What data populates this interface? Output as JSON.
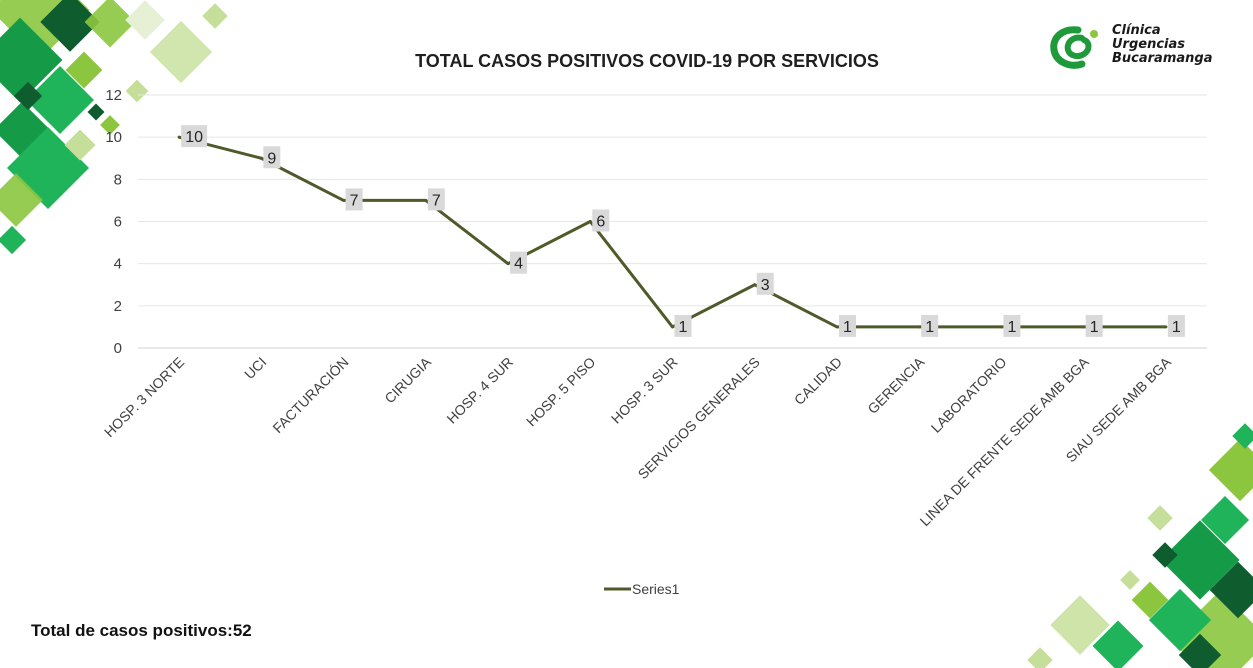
{
  "chart_data": {
    "type": "line",
    "title": "TOTAL CASOS POSITIVOS COVID-19 POR SERVICIOS",
    "categories": [
      "HOSP. 3 NORTE",
      "UCI",
      "FACTURACIÓN",
      "CIRUGIA",
      "HOSP. 4 SUR",
      "HOSP. 5 PISO",
      "HOSP. 3 SUR",
      "SERVICIOS GENERALES",
      "CALIDAD",
      "GERENCIA",
      "LABORATORIO",
      "LINEA DE FRENTE SEDE AMB BGA",
      "SIAU SEDE AMB BGA"
    ],
    "series": [
      {
        "name": "Series1",
        "values": [
          10,
          9,
          7,
          7,
          4,
          6,
          1,
          3,
          1,
          1,
          1,
          1,
          1
        ]
      }
    ],
    "ylim": [
      0,
      12
    ],
    "yticks": [
      0,
      2,
      4,
      6,
      8,
      10,
      12
    ],
    "grid": true,
    "legend": "bottom-center",
    "data_labels": true,
    "line_color": "#4f5a2a"
  },
  "logo": {
    "lines": [
      "Clínica",
      "Urgencias",
      "Bucaramanga"
    ],
    "mark_color": "#1f9a3a"
  },
  "footer": {
    "total_text": "Total de casos positivos:52"
  },
  "theme": {
    "deco_colors": [
      "#0f5c2e",
      "#159a48",
      "#1fb35a",
      "#8cc63f",
      "#c5df9a",
      "#e6f0d4"
    ]
  }
}
